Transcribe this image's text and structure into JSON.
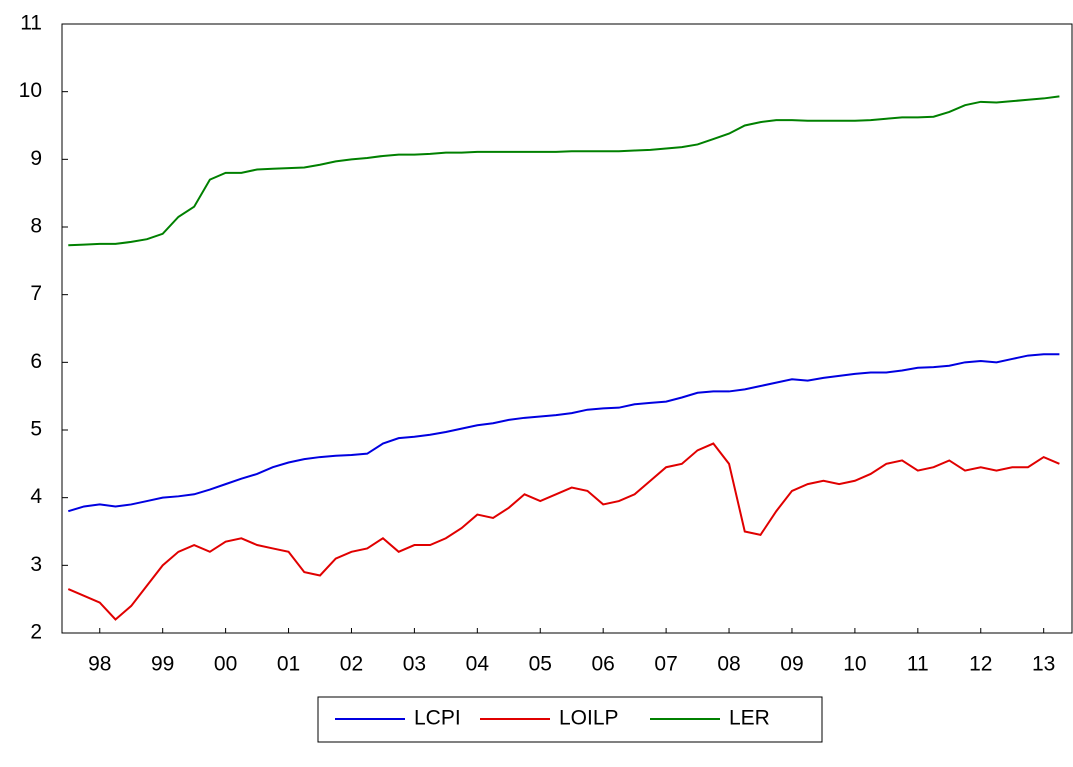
{
  "chart_data": {
    "type": "line",
    "x": [
      1998.0,
      1998.25,
      1998.5,
      1998.75,
      1999.0,
      1999.25,
      1999.5,
      1999.75,
      2000.0,
      2000.25,
      2000.5,
      2000.75,
      2001.0,
      2001.25,
      2001.5,
      2001.75,
      2002.0,
      2002.25,
      2002.5,
      2002.75,
      2003.0,
      2003.25,
      2003.5,
      2003.75,
      2004.0,
      2004.25,
      2004.5,
      2004.75,
      2005.0,
      2005.25,
      2005.5,
      2005.75,
      2006.0,
      2006.25,
      2006.5,
      2006.75,
      2007.0,
      2007.25,
      2007.5,
      2007.75,
      2008.0,
      2008.25,
      2008.5,
      2008.75,
      2009.0,
      2009.25,
      2009.5,
      2009.75,
      2010.0,
      2010.25,
      2010.5,
      2010.75,
      2011.0,
      2011.25,
      2011.5,
      2011.75,
      2012.0,
      2012.25,
      2012.5,
      2012.75,
      2013.0,
      2013.25,
      2013.5,
      2013.75
    ],
    "series": [
      {
        "name": "LCPI",
        "color": "#0000e0",
        "values": [
          3.8,
          3.87,
          3.9,
          3.87,
          3.9,
          3.95,
          4.0,
          4.02,
          4.05,
          4.12,
          4.2,
          4.28,
          4.35,
          4.45,
          4.52,
          4.57,
          4.6,
          4.62,
          4.63,
          4.65,
          4.8,
          4.88,
          4.9,
          4.93,
          4.97,
          5.02,
          5.07,
          5.1,
          5.15,
          5.18,
          5.2,
          5.22,
          5.25,
          5.3,
          5.32,
          5.33,
          5.38,
          5.4,
          5.42,
          5.48,
          5.55,
          5.57,
          5.57,
          5.6,
          5.65,
          5.7,
          5.75,
          5.73,
          5.77,
          5.8,
          5.83,
          5.85,
          5.85,
          5.88,
          5.92,
          5.93,
          5.95,
          6.0,
          6.02,
          6.0,
          6.05,
          6.1,
          6.12,
          6.12
        ]
      },
      {
        "name": "LOILP",
        "color": "#e00000",
        "values": [
          2.65,
          2.55,
          2.45,
          2.2,
          2.4,
          2.7,
          3.0,
          3.2,
          3.3,
          3.2,
          3.35,
          3.4,
          3.3,
          3.25,
          3.2,
          2.9,
          2.85,
          3.1,
          3.2,
          3.25,
          3.4,
          3.2,
          3.3,
          3.3,
          3.4,
          3.55,
          3.75,
          3.7,
          3.85,
          4.05,
          3.95,
          4.05,
          4.15,
          4.1,
          3.9,
          3.95,
          4.05,
          4.25,
          4.45,
          4.5,
          4.7,
          4.8,
          4.5,
          3.5,
          3.45,
          3.8,
          4.1,
          4.2,
          4.25,
          4.2,
          4.25,
          4.35,
          4.5,
          4.55,
          4.4,
          4.45,
          4.55,
          4.4,
          4.45,
          4.4,
          4.45,
          4.45,
          4.6,
          4.5
        ]
      },
      {
        "name": "LER",
        "color": "#008000",
        "values": [
          7.73,
          7.74,
          7.75,
          7.75,
          7.78,
          7.82,
          7.9,
          8.15,
          8.3,
          8.7,
          8.8,
          8.8,
          8.85,
          8.86,
          8.87,
          8.88,
          8.92,
          8.97,
          9.0,
          9.02,
          9.05,
          9.07,
          9.07,
          9.08,
          9.1,
          9.1,
          9.11,
          9.11,
          9.11,
          9.11,
          9.11,
          9.11,
          9.12,
          9.12,
          9.12,
          9.12,
          9.13,
          9.14,
          9.16,
          9.18,
          9.22,
          9.3,
          9.38,
          9.5,
          9.55,
          9.58,
          9.58,
          9.57,
          9.57,
          9.57,
          9.57,
          9.58,
          9.6,
          9.62,
          9.62,
          9.63,
          9.7,
          9.8,
          9.85,
          9.84,
          9.86,
          9.88,
          9.9,
          9.93
        ]
      }
    ],
    "xlim": [
      1997.9,
      2013.95
    ],
    "xticks": [
      {
        "value": 1998.5,
        "label": "98"
      },
      {
        "value": 1999.5,
        "label": "99"
      },
      {
        "value": 2000.5,
        "label": "00"
      },
      {
        "value": 2001.5,
        "label": "01"
      },
      {
        "value": 2002.5,
        "label": "02"
      },
      {
        "value": 2003.5,
        "label": "03"
      },
      {
        "value": 2004.5,
        "label": "04"
      },
      {
        "value": 2005.5,
        "label": "05"
      },
      {
        "value": 2006.5,
        "label": "06"
      },
      {
        "value": 2007.5,
        "label": "07"
      },
      {
        "value": 2008.5,
        "label": "08"
      },
      {
        "value": 2009.5,
        "label": "09"
      },
      {
        "value": 2010.5,
        "label": "10"
      },
      {
        "value": 2011.5,
        "label": "11"
      },
      {
        "value": 2012.5,
        "label": "12"
      },
      {
        "value": 2013.5,
        "label": "13"
      }
    ],
    "ylim": [
      2,
      11
    ],
    "yticks": [
      2,
      3,
      4,
      5,
      6,
      7,
      8,
      9,
      10,
      11
    ],
    "grid": false,
    "legend": "bottom"
  }
}
